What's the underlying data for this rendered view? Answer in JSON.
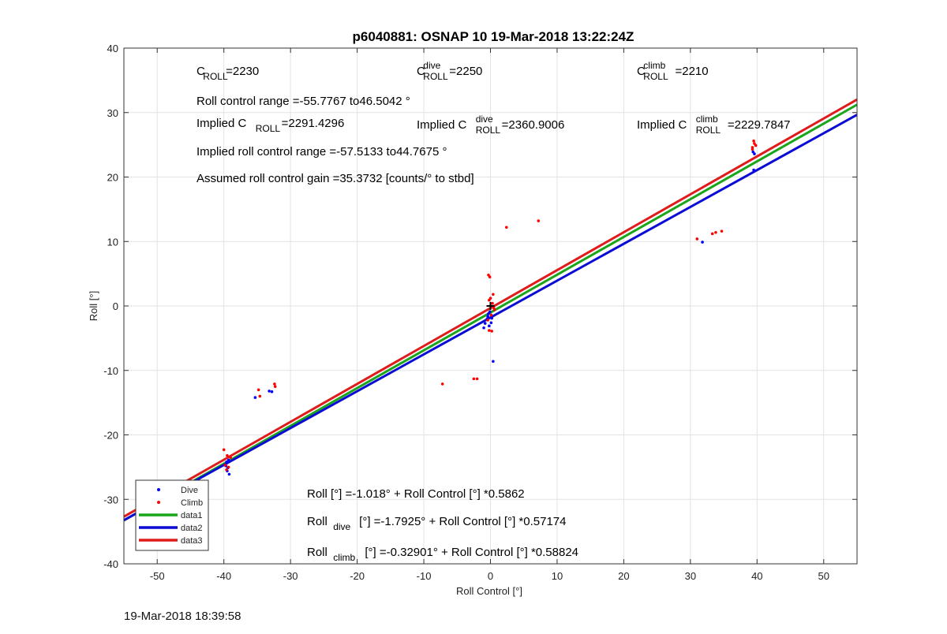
{
  "chart_data": {
    "type": "scatter",
    "title": "p6040881: OSNAP 10 19-Mar-2018 13:22:24Z",
    "xlabel": "Roll Control [°]",
    "ylabel": "Roll [°]",
    "xlim": [
      -55,
      55
    ],
    "ylim": [
      -40,
      40
    ],
    "xticks": [
      -50,
      -40,
      -30,
      -20,
      -10,
      0,
      10,
      20,
      30,
      40,
      50
    ],
    "yticks": [
      -40,
      -30,
      -20,
      -10,
      0,
      10,
      20,
      30,
      40
    ],
    "grid": true,
    "legend_position": "bottom-left",
    "annotations": {
      "c_roll": {
        "base": "C",
        "sub": "ROLL",
        "value": "=2230"
      },
      "c_roll_dive": {
        "base": "C",
        "sup": "dive",
        "sub": "ROLL",
        "value": " =2250"
      },
      "c_roll_climb": {
        "base": "C",
        "sup": "climb",
        "sub": "ROLL",
        "value": " =2210"
      },
      "range": "Roll control range =-55.7767 to46.5042 °",
      "implied_c_roll": {
        "prefix": "Implied C",
        "sub": "ROLL",
        "value": " =2291.4296"
      },
      "implied_c_roll_dive": {
        "prefix": "Implied C",
        "sup": "dive",
        "sub": "ROLL",
        "value": " =2360.9006"
      },
      "implied_c_roll_climb": {
        "prefix": "Implied C",
        "sup": "climb",
        "sub": "ROLL",
        "value": " =2229.7847"
      },
      "implied_range": "Implied roll control range =-57.5133 to44.7675 °",
      "gain": "Assumed roll control gain =35.3732 [counts/° to stbd]",
      "fit_all": "Roll [°] =-1.018° + Roll Control [°] *0.5862",
      "fit_dive": {
        "base": "Roll",
        "sub": "dive",
        "rest": " [°] =-1.7925° + Roll Control [°] *0.57174"
      },
      "fit_climb": {
        "base": "Roll",
        "sub": "climb",
        "rest": " [°] =-0.32901° + Roll Control [°] *0.58824"
      }
    },
    "series": [
      {
        "name": "Dive",
        "kind": "points",
        "color": "#0000ff",
        "points": [
          [
            -49.8,
            -28.5
          ],
          [
            -39.6,
            -24.2
          ],
          [
            -39.4,
            -25.1
          ],
          [
            -39.5,
            -25.6
          ],
          [
            -39.2,
            -26.1
          ],
          [
            -39.7,
            -24.8
          ],
          [
            -39.3,
            -23.9
          ],
          [
            -35.3,
            -14.2
          ],
          [
            -33.2,
            -13.2
          ],
          [
            -32.8,
            -13.3
          ],
          [
            -0.3,
            -1.2
          ],
          [
            -0.5,
            -2.0
          ],
          [
            -0.2,
            -3.1
          ],
          [
            0.1,
            -2.6
          ],
          [
            -0.4,
            -1.6
          ],
          [
            0.2,
            -1.9
          ],
          [
            -0.1,
            -0.9
          ],
          [
            0.4,
            -8.6
          ],
          [
            -1.0,
            -3.4
          ],
          [
            -0.8,
            -2.7
          ],
          [
            31.8,
            9.9
          ],
          [
            39.5,
            21.1
          ],
          [
            39.6,
            23.6
          ],
          [
            39.4,
            23.9
          ]
        ]
      },
      {
        "name": "Climb",
        "kind": "points",
        "color": "#ff0000",
        "points": [
          [
            -40.0,
            -22.3
          ],
          [
            -39.5,
            -23.2
          ],
          [
            -39.0,
            -23.5
          ],
          [
            -39.8,
            -24.7
          ],
          [
            -39.3,
            -25.0
          ],
          [
            -39.6,
            -25.4
          ],
          [
            -34.8,
            -13.0
          ],
          [
            -34.6,
            -14.0
          ],
          [
            -32.4,
            -12.1
          ],
          [
            -32.3,
            -12.5
          ],
          [
            -7.2,
            -12.1
          ],
          [
            -2.5,
            -11.3
          ],
          [
            -2.0,
            -11.3
          ],
          [
            -0.3,
            4.8
          ],
          [
            -0.1,
            4.5
          ],
          [
            0.0,
            1.2
          ],
          [
            0.3,
            0.4
          ],
          [
            -0.2,
            0.9
          ],
          [
            0.5,
            -0.3
          ],
          [
            0.1,
            -1.4
          ],
          [
            -0.4,
            -2.2
          ],
          [
            0.2,
            -3.9
          ],
          [
            -0.2,
            -3.8
          ],
          [
            0.6,
            -0.6
          ],
          [
            0.4,
            1.8
          ],
          [
            2.4,
            12.2
          ],
          [
            7.2,
            13.2
          ],
          [
            31.0,
            10.4
          ],
          [
            33.3,
            11.2
          ],
          [
            33.8,
            11.4
          ],
          [
            34.7,
            11.6
          ],
          [
            39.3,
            24.6
          ],
          [
            39.6,
            25.2
          ],
          [
            39.5,
            25.6
          ],
          [
            39.8,
            24.9
          ],
          [
            39.3,
            24.3
          ]
        ]
      },
      {
        "name": "data1",
        "kind": "line",
        "color": "#1aa51a",
        "x": [
          -55,
          55
        ],
        "y": [
          -33.259,
          31.223
        ]
      },
      {
        "name": "data2",
        "kind": "line",
        "color": "#0b0bd6",
        "x": [
          -55,
          55
        ],
        "y": [
          -33.238,
          29.653
        ]
      },
      {
        "name": "data3",
        "kind": "line",
        "color": "#e01b1b",
        "x": [
          -55,
          55
        ],
        "y": [
          -32.682,
          32.024
        ]
      }
    ],
    "marker": {
      "x": 0,
      "y": 0,
      "color": "#000000"
    }
  },
  "footer": {
    "timestamp": "19-Mar-2018 18:39:58"
  }
}
